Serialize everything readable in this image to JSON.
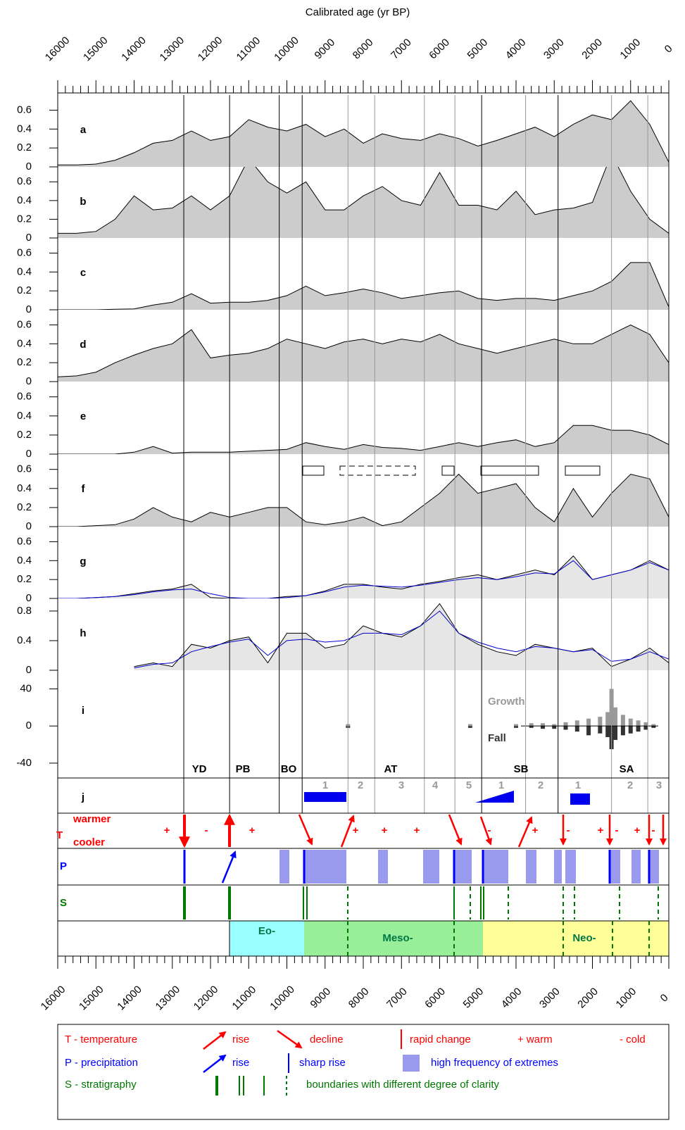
{
  "chart_data": {
    "type": "multi-panel",
    "title": "Calibrated age (yr BP)",
    "xlim": [
      16000,
      0
    ],
    "xticks": [
      16000,
      15000,
      14000,
      13000,
      12000,
      11000,
      10000,
      9000,
      8000,
      7000,
      6000,
      5000,
      4000,
      3000,
      2000,
      1000,
      0
    ],
    "x": [
      16000,
      15500,
      15000,
      14500,
      14000,
      13500,
      13000,
      12500,
      12000,
      11500,
      11000,
      10500,
      10000,
      9500,
      9000,
      8500,
      8000,
      7500,
      7000,
      6500,
      6000,
      5500,
      5000,
      4500,
      4000,
      3500,
      3000,
      2500,
      2000,
      1500,
      1000,
      500,
      0
    ],
    "boundaries_major": [
      12700,
      11500,
      10200,
      9600,
      4900,
      2900
    ],
    "boundaries_minor": [
      8400,
      7700,
      6400,
      5600,
      3750,
      1500,
      550
    ],
    "panels": [
      {
        "type": "area",
        "label": "a",
        "ylim": [
          0,
          0.76
        ],
        "yticks": [
          0,
          0.2,
          0.4,
          0.6
        ],
        "series": [
          {
            "color": "#cccccc",
            "values": [
              0.02,
              0.02,
              0.03,
              0.07,
              0.15,
              0.25,
              0.28,
              0.38,
              0.28,
              0.32,
              0.5,
              0.42,
              0.38,
              0.45,
              0.32,
              0.4,
              0.25,
              0.35,
              0.3,
              0.28,
              0.35,
              0.3,
              0.22,
              0.28,
              0.35,
              0.42,
              0.32,
              0.45,
              0.55,
              0.5,
              0.7,
              0.45,
              0.05
            ]
          }
        ]
      },
      {
        "type": "area",
        "label": "b",
        "ylim": [
          0,
          0.76
        ],
        "yticks": [
          0,
          0.2,
          0.4,
          0.6
        ],
        "series": [
          {
            "color": "#cccccc",
            "values": [
              0.05,
              0.05,
              0.07,
              0.2,
              0.45,
              0.3,
              0.32,
              0.45,
              0.3,
              0.45,
              0.85,
              0.6,
              0.48,
              0.6,
              0.3,
              0.3,
              0.45,
              0.55,
              0.4,
              0.35,
              0.7,
              0.35,
              0.35,
              0.3,
              0.5,
              0.25,
              0.3,
              0.32,
              0.38,
              0.9,
              0.5,
              0.2,
              0.05
            ]
          }
        ]
      },
      {
        "type": "area",
        "label": "c",
        "ylim": [
          0,
          0.76
        ],
        "yticks": [
          0,
          0.2,
          0.4,
          0.6
        ],
        "series": [
          {
            "color": "#cccccc",
            "values": [
              0,
              0,
              0,
              0.005,
              0.01,
              0.05,
              0.08,
              0.17,
              0.07,
              0.08,
              0.08,
              0.1,
              0.15,
              0.25,
              0.15,
              0.18,
              0.22,
              0.18,
              0.12,
              0.15,
              0.18,
              0.2,
              0.12,
              0.1,
              0.12,
              0.12,
              0.1,
              0.15,
              0.2,
              0.3,
              0.5,
              0.5,
              0.03
            ]
          }
        ]
      },
      {
        "type": "area",
        "label": "d",
        "ylim": [
          0,
          0.76
        ],
        "yticks": [
          0,
          0.2,
          0.4,
          0.6
        ],
        "series": [
          {
            "color": "#cccccc",
            "values": [
              0.05,
              0.06,
              0.1,
              0.2,
              0.28,
              0.35,
              0.4,
              0.55,
              0.25,
              0.28,
              0.3,
              0.35,
              0.45,
              0.4,
              0.35,
              0.42,
              0.45,
              0.4,
              0.45,
              0.42,
              0.5,
              0.4,
              0.35,
              0.3,
              0.35,
              0.4,
              0.45,
              0.4,
              0.4,
              0.5,
              0.6,
              0.5,
              0.2
            ]
          }
        ]
      },
      {
        "type": "area",
        "label": "e",
        "ylim": [
          0,
          0.76
        ],
        "yticks": [
          0,
          0.2,
          0.4,
          0.6
        ],
        "series": [
          {
            "color": "#cccccc",
            "values": [
              0,
              0,
              0,
              0,
              0.02,
              0.08,
              0.01,
              0.02,
              0.02,
              0.02,
              0.03,
              0.04,
              0.05,
              0.12,
              0.08,
              0.05,
              0.1,
              0.07,
              0.06,
              0.04,
              0.08,
              0.12,
              0.08,
              0.12,
              0.15,
              0.08,
              0.12,
              0.3,
              0.3,
              0.25,
              0.25,
              0.2,
              0.1
            ]
          }
        ]
      },
      {
        "type": "area",
        "label": "f",
        "ylim": [
          0,
          0.76
        ],
        "yticks": [
          0,
          0.2,
          0.4,
          0.6
        ],
        "series": [
          {
            "color": "#cccccc",
            "values": [
              0,
              0,
              0.01,
              0.02,
              0.08,
              0.2,
              0.1,
              0.05,
              0.15,
              0.1,
              0.15,
              0.2,
              0.2,
              0.05,
              0.02,
              0.05,
              0.1,
              0.01,
              0.05,
              0.2,
              0.35,
              0.55,
              0.35,
              0.4,
              0.45,
              0.2,
              0.05,
              0.4,
              0.1,
              0.35,
              0.55,
              0.5,
              0.1
            ]
          }
        ]
      },
      {
        "type": "area",
        "label": "g",
        "ylim": [
          0,
          0.76
        ],
        "yticks": [
          0,
          0.2,
          0.4,
          0.6
        ],
        "series": [
          {
            "color": "#e6e6e6",
            "values": [
              0,
              0,
              0.01,
              0.02,
              0.05,
              0.08,
              0.1,
              0.15,
              0.01,
              0,
              0,
              0,
              0.02,
              0.03,
              0.08,
              0.15,
              0.15,
              0.12,
              0.1,
              0.15,
              0.18,
              0.22,
              0.25,
              0.2,
              0.25,
              0.3,
              0.25,
              0.45,
              0.2,
              0.25,
              0.3,
              0.4,
              0.3
            ]
          },
          {
            "color": "#0000cc",
            "values": [
              0,
              0,
              0.01,
              0.02,
              0.04,
              0.07,
              0.09,
              0.1,
              0.05,
              0.01,
              0,
              0,
              0.01,
              0.03,
              0.07,
              0.12,
              0.14,
              0.13,
              0.12,
              0.14,
              0.17,
              0.2,
              0.22,
              0.2,
              0.23,
              0.27,
              0.26,
              0.4,
              0.2,
              0.25,
              0.3,
              0.38,
              0.3
            ]
          }
        ]
      },
      {
        "type": "area",
        "label": "h",
        "ylim": [
          0,
          0.97
        ],
        "yticks": [
          0,
          0.4,
          0.8
        ],
        "series": [
          {
            "color": "#e6e6e6",
            "values": [
              null,
              null,
              null,
              null,
              0.05,
              0.1,
              0.05,
              0.35,
              0.3,
              0.4,
              0.45,
              0.1,
              0.5,
              0.5,
              0.3,
              0.35,
              0.6,
              0.5,
              0.45,
              0.6,
              0.9,
              0.5,
              0.35,
              0.25,
              0.2,
              0.35,
              0.3,
              0.25,
              0.3,
              0.05,
              0.15,
              0.3,
              0.1
            ]
          },
          {
            "color": "#0000cc",
            "values": [
              null,
              null,
              null,
              null,
              0.03,
              0.08,
              0.1,
              0.25,
              0.32,
              0.38,
              0.42,
              0.2,
              0.4,
              0.42,
              0.38,
              0.4,
              0.5,
              0.5,
              0.48,
              0.6,
              0.8,
              0.5,
              0.38,
              0.3,
              0.25,
              0.32,
              0.3,
              0.25,
              0.28,
              0.12,
              0.15,
              0.25,
              0.15
            ]
          }
        ]
      },
      {
        "type": "bar",
        "label": "i",
        "ylim": [
          -56,
          54
        ],
        "yticks": [
          -40,
          0,
          40
        ],
        "x": [
          8400,
          5200,
          4000,
          3600,
          3300,
          3000,
          2700,
          2400,
          2100,
          1800,
          1600,
          1500,
          1400,
          1200,
          1000,
          800,
          600,
          400
        ],
        "series": [
          {
            "name": "Growth",
            "color": "#999999",
            "values": [
              2,
              2,
              2,
              3,
              3,
              2,
              4,
              6,
              8,
              10,
              15,
              40,
              20,
              12,
              8,
              6,
              4,
              2
            ]
          },
          {
            "name": "Fall",
            "color": "#333333",
            "values": [
              -2,
              -2,
              -2,
              -2,
              -3,
              -3,
              -4,
              -6,
              -10,
              -8,
              -12,
              -25,
              -15,
              -10,
              -8,
              -6,
              -4,
              -2
            ]
          }
        ]
      }
    ],
    "periods": [
      "YD",
      "PB",
      "BO",
      "AT",
      "SB",
      "SA"
    ],
    "j_label": "j",
    "subperiods": [
      "1",
      "2",
      "3",
      "4",
      "5",
      "1",
      "2",
      "1",
      "2",
      "3"
    ],
    "t_label": "T",
    "t_warmer": "warmer",
    "t_cooler": "cooler",
    "t_signs": [
      "+",
      "-",
      "+",
      "+",
      "+",
      "+",
      "-",
      "+",
      "-",
      "+",
      "-",
      "+",
      "-"
    ],
    "p_label": "P",
    "s_label": "S",
    "epochs": [
      "Eo-",
      "Meso-",
      "Neo-"
    ],
    "legend": [
      "T - temperature",
      "rise",
      "decline",
      "rapid change",
      "+ warm",
      "- cold",
      "P - precipitation",
      "rise",
      "sharp rise",
      "high frequency of extremes",
      "S - stratigraphy",
      "boundaries with different degree of clarity"
    ]
  }
}
